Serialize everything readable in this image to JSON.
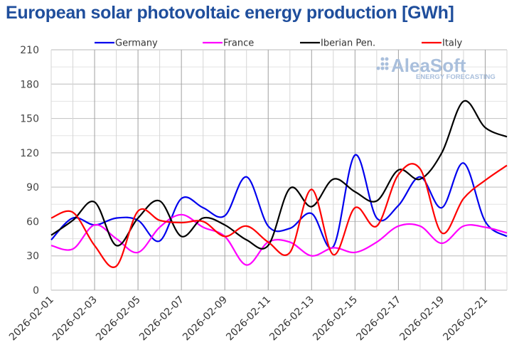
{
  "chart_data": {
    "type": "line",
    "title": "European solar photovoltaic energy production [GWh]",
    "xlabel": "",
    "ylabel": "",
    "ylim": [
      0,
      210
    ],
    "yticks": [
      0,
      30,
      60,
      90,
      120,
      150,
      180,
      210
    ],
    "grid": true,
    "legend_position": "top",
    "x": [
      "2026-02-01",
      "2026-02-02",
      "2026-02-03",
      "2026-02-04",
      "2026-02-05",
      "2026-02-06",
      "2026-02-07",
      "2026-02-08",
      "2026-02-09",
      "2026-02-10",
      "2026-02-11",
      "2026-02-12",
      "2026-02-13",
      "2026-02-14",
      "2026-02-15",
      "2026-02-16",
      "2026-02-17",
      "2026-02-18",
      "2026-02-19",
      "2026-02-20",
      "2026-02-21",
      "2026-02-22"
    ],
    "xtick_labels": [
      "2026-02-01",
      "2026-02-03",
      "2026-02-05",
      "2026-02-07",
      "2026-02-09",
      "2026-02-11",
      "2026-02-13",
      "2026-02-15",
      "2026-02-17",
      "2026-02-19",
      "2026-02-21"
    ],
    "series": [
      {
        "name": "Germany",
        "color": "#0000ee",
        "values": [
          44,
          63,
          57,
          63,
          61,
          43,
          80,
          72,
          65,
          99,
          56,
          54,
          67,
          38,
          118,
          63,
          74,
          99,
          72,
          111,
          60,
          47
        ]
      },
      {
        "name": "France",
        "color": "#ff00ff",
        "values": [
          39,
          36,
          57,
          45,
          33,
          55,
          66,
          55,
          47,
          22,
          42,
          42,
          30,
          37,
          33,
          42,
          56,
          56,
          41,
          56,
          55,
          50
        ]
      },
      {
        "name": "Iberian Pen.",
        "color": "#000000",
        "values": [
          48,
          61,
          77,
          39,
          63,
          78,
          47,
          63,
          57,
          44,
          39,
          89,
          73,
          97,
          86,
          78,
          105,
          97,
          120,
          165,
          142,
          134
        ]
      },
      {
        "name": "Italy",
        "color": "#ff0000",
        "values": [
          63,
          68,
          39,
          21,
          69,
          61,
          59,
          60,
          47,
          56,
          42,
          33,
          88,
          31,
          72,
          56,
          101,
          106,
          50,
          80,
          96,
          109
        ]
      }
    ]
  },
  "watermark": {
    "brand": "AleaSoft",
    "tagline": "ENERGY FORECASTING"
  }
}
